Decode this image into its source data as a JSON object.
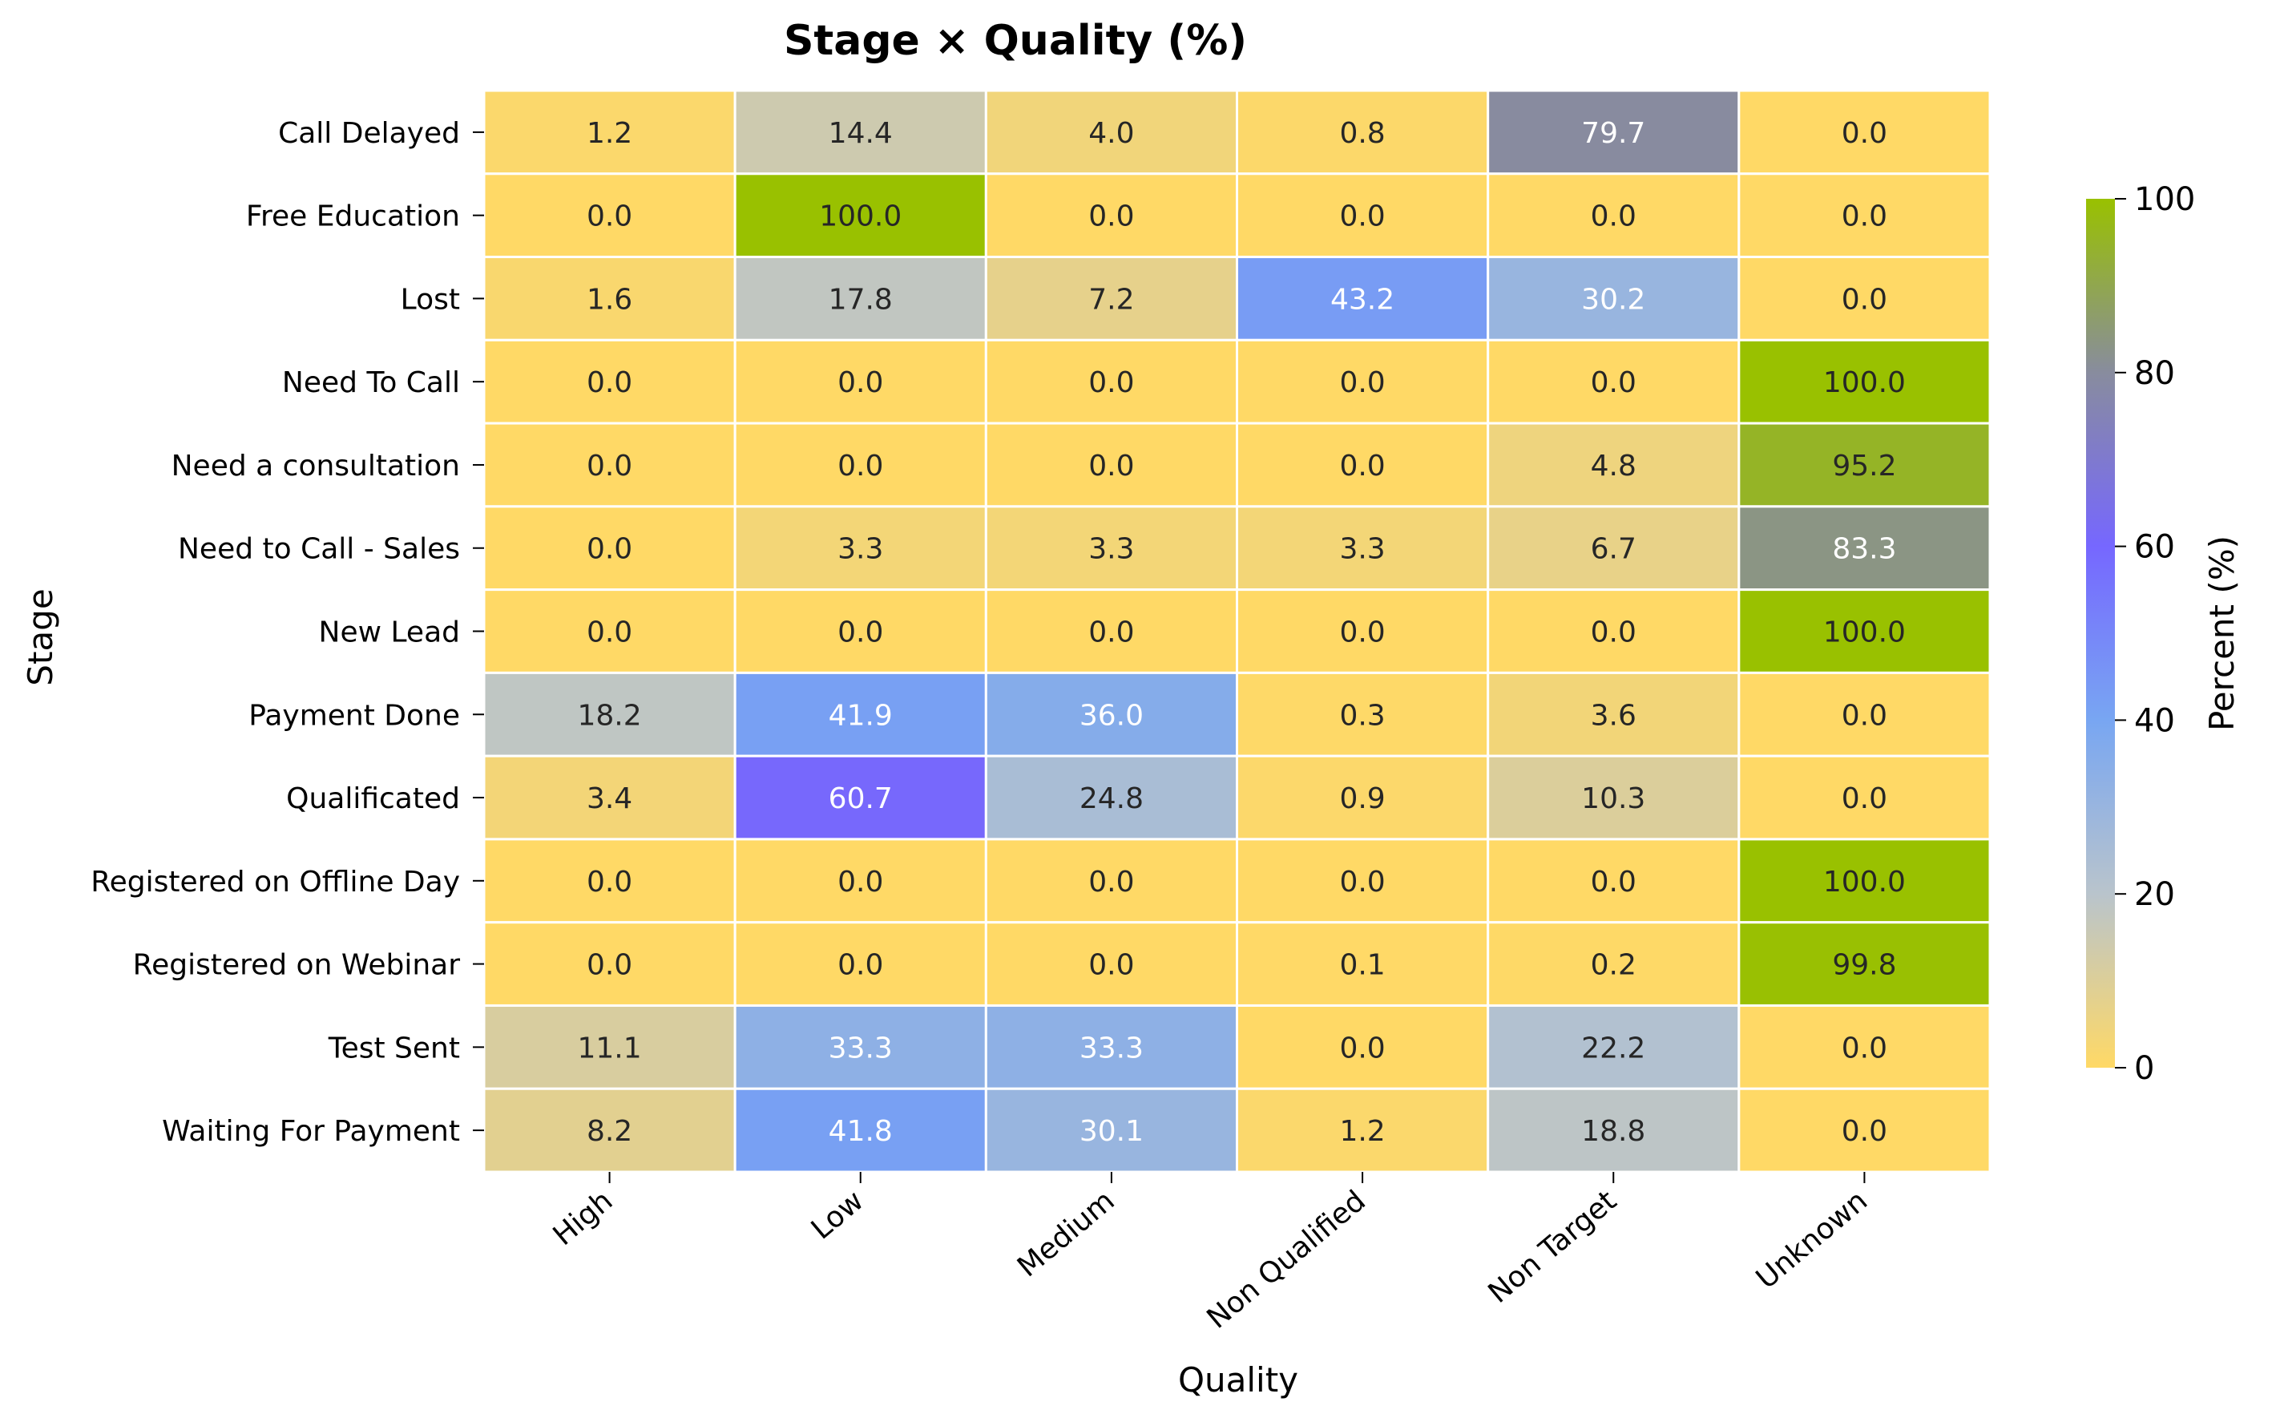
{
  "chart_data": {
    "type": "heatmap",
    "title": "Stage × Quality (%)",
    "xlabel": "Quality",
    "ylabel": "Stage",
    "x_categories": [
      "High",
      "Low",
      "Medium",
      "Non Qualified",
      "Non Target",
      "Unknown"
    ],
    "y_categories": [
      "Call Delayed",
      "Free Education",
      "Lost",
      "Need To Call",
      "Need a consultation",
      "Need to Call - Sales",
      "New Lead",
      "Payment Done",
      "Qualificated",
      "Registered on Offline Day",
      "Registered on Webinar",
      "Test Sent",
      "Waiting For Payment"
    ],
    "values": [
      [
        1.2,
        14.4,
        4.0,
        0.8,
        79.7,
        0.0
      ],
      [
        0.0,
        100.0,
        0.0,
        0.0,
        0.0,
        0.0
      ],
      [
        1.6,
        17.8,
        7.2,
        43.2,
        30.2,
        0.0
      ],
      [
        0.0,
        0.0,
        0.0,
        0.0,
        0.0,
        100.0
      ],
      [
        0.0,
        0.0,
        0.0,
        0.0,
        4.8,
        95.2
      ],
      [
        0.0,
        3.3,
        3.3,
        3.3,
        6.7,
        83.3
      ],
      [
        0.0,
        0.0,
        0.0,
        0.0,
        0.0,
        100.0
      ],
      [
        18.2,
        41.9,
        36.0,
        0.3,
        3.6,
        0.0
      ],
      [
        3.4,
        60.7,
        24.8,
        0.9,
        10.3,
        0.0
      ],
      [
        0.0,
        0.0,
        0.0,
        0.0,
        0.0,
        100.0
      ],
      [
        0.0,
        0.0,
        0.0,
        0.1,
        0.2,
        99.8
      ],
      [
        11.1,
        33.3,
        33.3,
        0.0,
        22.2,
        0.0
      ],
      [
        8.2,
        41.8,
        30.1,
        1.2,
        18.8,
        0.0
      ]
    ],
    "value_range": [
      0,
      100
    ],
    "colorbar": {
      "label": "Percent (%)",
      "ticks": [
        0,
        20,
        40,
        60,
        80,
        100
      ],
      "colormap": [
        {
          "v": 0,
          "color": "#FFD966"
        },
        {
          "v": 20,
          "color": "#B9C4CC"
        },
        {
          "v": 40,
          "color": "#78A6F2"
        },
        {
          "v": 60,
          "color": "#7667FF"
        },
        {
          "v": 80,
          "color": "#888C9E"
        },
        {
          "v": 100,
          "color": "#99C100"
        }
      ]
    },
    "grid": false,
    "legend": "colorbar-right"
  }
}
